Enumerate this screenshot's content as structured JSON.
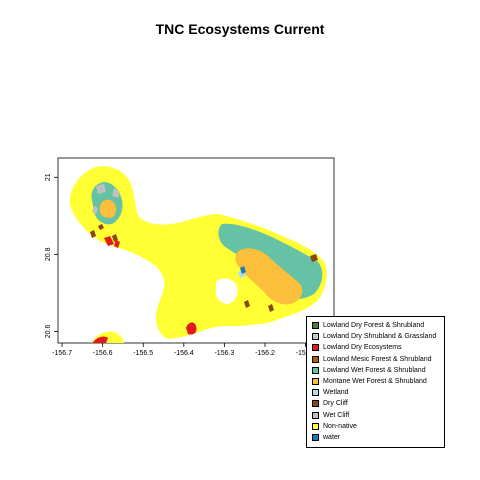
{
  "title": "TNC Ecosystems Current",
  "axes": {
    "x_ticks": [
      {
        "value": -156.7,
        "label": "-156.7"
      },
      {
        "value": -156.6,
        "label": "-156.6"
      },
      {
        "value": -156.5,
        "label": "-156.5"
      },
      {
        "value": -156.4,
        "label": "-156.4"
      },
      {
        "value": -156.3,
        "label": "-156.3"
      },
      {
        "value": -156.2,
        "label": "-156.2"
      },
      {
        "value": -156.1,
        "label": "-156.1"
      }
    ],
    "y_ticks": [
      {
        "value": 20.6,
        "label": "20.6"
      },
      {
        "value": 20.8,
        "label": "20.8"
      },
      {
        "value": 21.0,
        "label": "21"
      }
    ],
    "xlim": [
      -156.71,
      -156.03
    ],
    "ylim": [
      20.57,
      21.05
    ]
  },
  "colors": {
    "background": "#ffffff",
    "land": "#ffff33",
    "wet_forest": "#66c2a5",
    "montane": "#fbbf3b",
    "dry_ecosystems": "#e31a1c",
    "dry_cliff": "#8b4513",
    "wet_cliff": "#c0c0c0",
    "wetland": "#b0e0e6",
    "water": "#1f78b4"
  },
  "legend": {
    "items": [
      {
        "label": "Lowland Dry Forest & Shrubland",
        "color": "#4d7f2e"
      },
      {
        "label": "Lowland Dry Shrubland & Grassland",
        "color": "#c8c8c8"
      },
      {
        "label": "Lowland Dry Ecosystems",
        "color": "#e31a1c"
      },
      {
        "label": "Lowland Mesic Forest & Shrubland",
        "color": "#b35806"
      },
      {
        "label": "Lowland Wet Forest & Shrubland",
        "color": "#66c2a5"
      },
      {
        "label": "Montane Wet Forest & Shrubland",
        "color": "#fbbf3b"
      },
      {
        "label": "Wetland",
        "color": "#b0e0e6"
      },
      {
        "label": "Dry Cliff",
        "color": "#8b4513"
      },
      {
        "label": "Wet Cliff",
        "color": "#c0c0c0"
      },
      {
        "label": "Non-native",
        "color": "#ffff33"
      },
      {
        "label": "water",
        "color": "#1f78b4"
      }
    ]
  }
}
